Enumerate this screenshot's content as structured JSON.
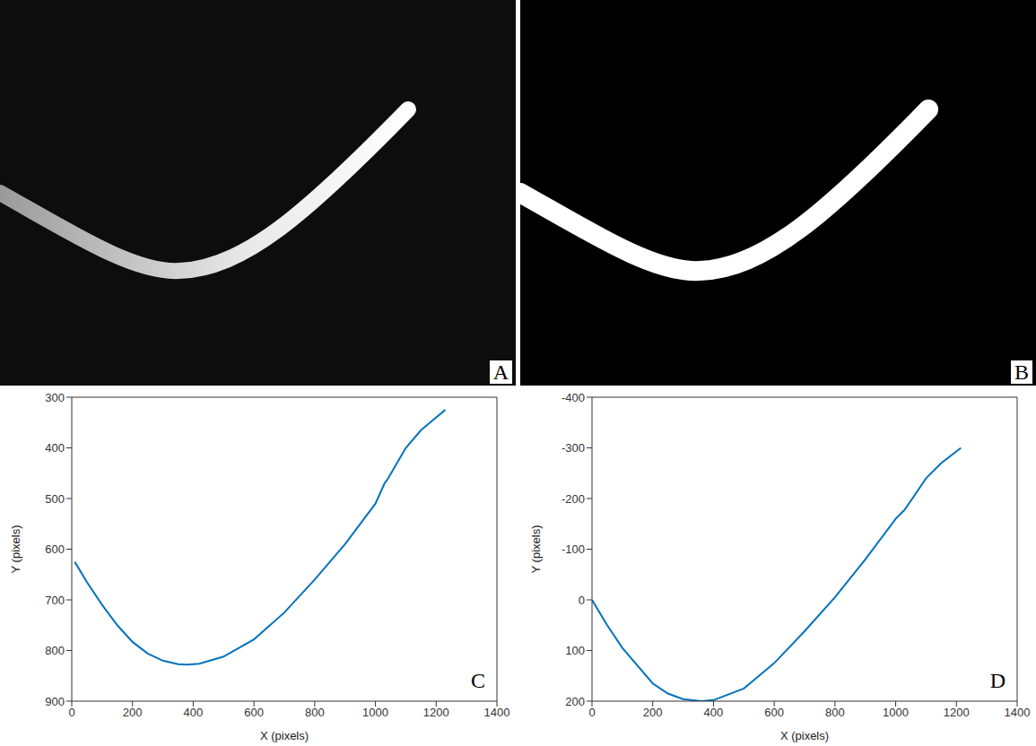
{
  "image_panels": [
    {
      "label": "A"
    },
    {
      "label": "B"
    }
  ],
  "chart_data": [
    {
      "type": "line",
      "label": "C",
      "x_label": "X (pixels)",
      "y_label": "Y (pixels)",
      "xlim": [
        0,
        1400
      ],
      "ylim": [
        900,
        300
      ],
      "xticks": [
        0,
        200,
        400,
        600,
        800,
        1000,
        1200,
        1400
      ],
      "yticks": [
        300,
        400,
        500,
        600,
        700,
        800,
        900
      ],
      "color": "#0072bd",
      "x": [
        10,
        50,
        100,
        150,
        200,
        250,
        300,
        350,
        380,
        420,
        500,
        600,
        700,
        800,
        900,
        1000,
        1030,
        1040,
        1100,
        1150,
        1200,
        1230
      ],
      "values": [
        625,
        665,
        710,
        750,
        783,
        806,
        820,
        827,
        828,
        826,
        812,
        778,
        725,
        660,
        590,
        510,
        470,
        462,
        400,
        365,
        340,
        325
      ]
    },
    {
      "type": "line",
      "label": "D",
      "x_label": "X (pixels)",
      "y_label": "Y (pixels)",
      "xlim": [
        0,
        1400
      ],
      "ylim": [
        200,
        -400
      ],
      "xticks": [
        0,
        200,
        400,
        600,
        800,
        1000,
        1200,
        1400
      ],
      "yticks": [
        -400,
        -300,
        -200,
        -100,
        0,
        100,
        200
      ],
      "color": "#0072bd",
      "x": [
        0,
        50,
        100,
        200,
        250,
        300,
        360,
        400,
        500,
        600,
        700,
        800,
        900,
        1000,
        1020,
        1030,
        1100,
        1150,
        1215
      ],
      "values": [
        0,
        50,
        95,
        165,
        185,
        196,
        200,
        198,
        175,
        125,
        62,
        -5,
        -80,
        -160,
        -172,
        -178,
        -240,
        -270,
        -300
      ]
    }
  ]
}
